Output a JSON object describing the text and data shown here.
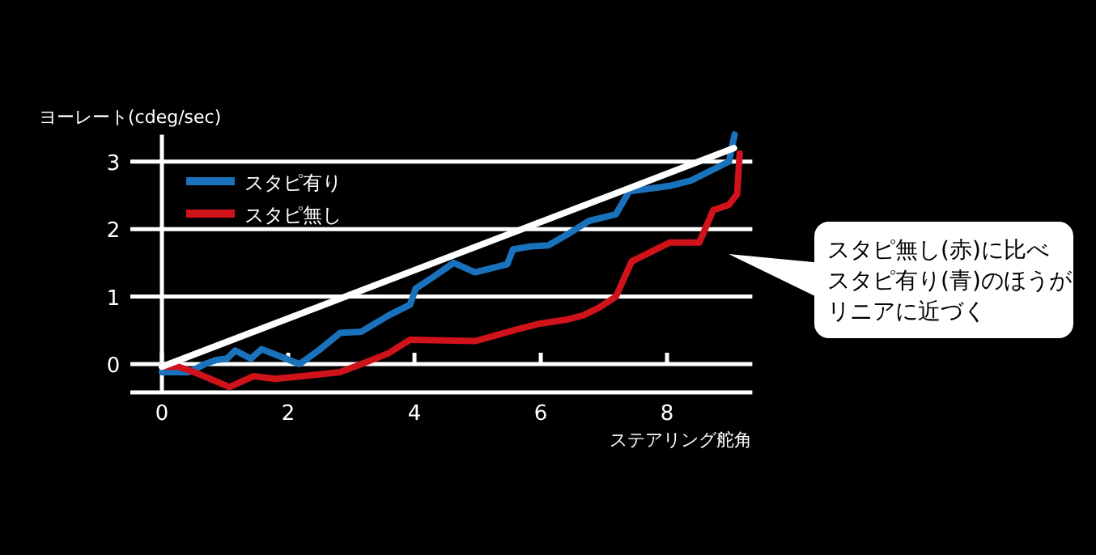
{
  "chart_data": {
    "type": "line",
    "ylabel": "ヨーレート(cdeg/sec)",
    "xlabel": "ステアリング舵角",
    "xlim": [
      -0.5,
      9.35
    ],
    "ylim": [
      -0.42,
      3.4
    ],
    "xticks": [
      0,
      2,
      4,
      6,
      8
    ],
    "yticks": [
      0,
      1,
      2,
      3
    ],
    "grid": "y",
    "legend": "top left",
    "marker": "none",
    "line_style": "solid",
    "series": [
      {
        "name": "スタピ有り",
        "color": "#1a72bd",
        "x": [
          0,
          0.43,
          0.68,
          0.86,
          1.03,
          1.16,
          1.41,
          1.58,
          1.8,
          2.18,
          2.48,
          2.82,
          3.16,
          3.59,
          3.93,
          4.02,
          4.28,
          4.62,
          4.96,
          5.47,
          5.56,
          5.82,
          6.12,
          6.42,
          6.76,
          7.19,
          7.4,
          8.04,
          8.38,
          8.98,
          9.07
        ],
        "values": [
          -0.12,
          -0.12,
          0,
          0.06,
          0.08,
          0.2,
          0.08,
          0.22,
          0.14,
          0,
          0.2,
          0.46,
          0.48,
          0.72,
          0.88,
          1.12,
          1.28,
          1.5,
          1.36,
          1.48,
          1.7,
          1.74,
          1.76,
          1.92,
          2.12,
          2.22,
          2.56,
          2.64,
          2.72,
          3.0,
          3.4
        ]
      },
      {
        "name": "スタピ無し",
        "color": "#d0121b",
        "x": [
          0,
          0.26,
          0.51,
          1.07,
          1.45,
          1.8,
          2.22,
          2.82,
          3.16,
          3.59,
          3.93,
          4.96,
          5.65,
          5.99,
          6.42,
          6.67,
          6.93,
          7.19,
          7.44,
          8.04,
          8.51,
          8.73,
          8.98,
          9.11,
          9.15
        ],
        "values": [
          -0.04,
          -0.04,
          -0.12,
          -0.34,
          -0.18,
          -0.22,
          -0.18,
          -0.12,
          0,
          0.16,
          0.36,
          0.34,
          0.52,
          0.6,
          0.66,
          0.72,
          0.84,
          1.0,
          1.52,
          1.8,
          1.8,
          2.28,
          2.36,
          2.52,
          3.12
        ]
      },
      {
        "color": "#ffffff",
        "x": [
          0,
          9.06
        ],
        "values": [
          -0.04,
          3.2
        ]
      }
    ],
    "annotations": [
      "スタピ無し(赤)に比べ",
      "スタピ有り(青)のほうが",
      "リニアに近づく"
    ]
  }
}
